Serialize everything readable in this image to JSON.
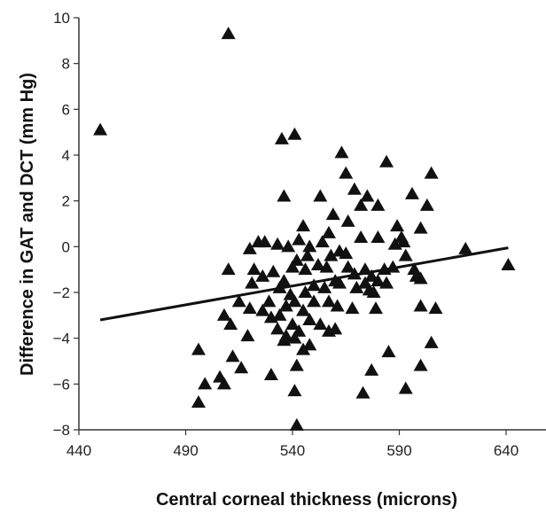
{
  "chart_data": {
    "type": "scatter",
    "title": "",
    "xlabel": "Central corneal thickness (microns)",
    "ylabel": "Difference in GAT and DCT (mm Hg)",
    "xlim": [
      440,
      640
    ],
    "ylim": [
      -8,
      10
    ],
    "x_ticks": [
      "440",
      "490",
      "540",
      "590",
      "640"
    ],
    "y_ticks": [
      "−8",
      "−6",
      "−4",
      "−2",
      "0",
      "2",
      "4",
      "6",
      "8",
      "10"
    ],
    "grid": false,
    "legend": "none",
    "marker": "triangle",
    "marker_color": "#111111",
    "points": [
      [
        450,
        5.1
      ],
      [
        510,
        9.3
      ],
      [
        535,
        4.7
      ],
      [
        541,
        4.9
      ],
      [
        536,
        2.2
      ],
      [
        563,
        4.1
      ],
      [
        565,
        3.2
      ],
      [
        584,
        3.7
      ],
      [
        569,
        2.5
      ],
      [
        575,
        2.2
      ],
      [
        553,
        2.2
      ],
      [
        596,
        2.3
      ],
      [
        605,
        3.2
      ],
      [
        603,
        1.8
      ],
      [
        580,
        1.8
      ],
      [
        572,
        1.8
      ],
      [
        566,
        1.1
      ],
      [
        559,
        1.4
      ],
      [
        557,
        0.6
      ],
      [
        545,
        0.9
      ],
      [
        589,
        0.9
      ],
      [
        591,
        0.4
      ],
      [
        588,
        0.1
      ],
      [
        600,
        0.8
      ],
      [
        593,
        -0.4
      ],
      [
        548,
        0.0
      ],
      [
        554,
        0.2
      ],
      [
        572,
        0.4
      ],
      [
        580,
        0.4
      ],
      [
        592,
        0.2
      ],
      [
        621,
        -0.1
      ],
      [
        565,
        -0.3
      ],
      [
        520,
        -0.1
      ],
      [
        524,
        0.2
      ],
      [
        527,
        0.2
      ],
      [
        533,
        0.1
      ],
      [
        538,
        0.0
      ],
      [
        543,
        0.3
      ],
      [
        547,
        -0.4
      ],
      [
        558,
        -0.4
      ],
      [
        562,
        -0.2
      ],
      [
        510,
        -1.0
      ],
      [
        522,
        -1.0
      ],
      [
        526,
        -1.3
      ],
      [
        531,
        -1.1
      ],
      [
        540,
        -0.9
      ],
      [
        542,
        -0.6
      ],
      [
        546,
        -1.0
      ],
      [
        552,
        -0.8
      ],
      [
        556,
        -0.9
      ],
      [
        560,
        -1.5
      ],
      [
        566,
        -0.9
      ],
      [
        569,
        -1.2
      ],
      [
        574,
        -1.0
      ],
      [
        577,
        -1.3
      ],
      [
        580,
        -1.5
      ],
      [
        583,
        -1.0
      ],
      [
        587,
        -0.9
      ],
      [
        597,
        -1.0
      ],
      [
        598,
        -1.3
      ],
      [
        641,
        -0.8
      ],
      [
        521,
        -1.6
      ],
      [
        534,
        -1.8
      ],
      [
        536,
        -1.5
      ],
      [
        539,
        -2.1
      ],
      [
        541,
        -2.4
      ],
      [
        546,
        -2.0
      ],
      [
        550,
        -1.7
      ],
      [
        555,
        -1.8
      ],
      [
        562,
        -1.6
      ],
      [
        570,
        -1.8
      ],
      [
        574,
        -1.6
      ],
      [
        576,
        -1.9
      ],
      [
        578,
        -2.0
      ],
      [
        584,
        -1.6
      ],
      [
        600,
        -1.4
      ],
      [
        515,
        -2.4
      ],
      [
        520,
        -2.7
      ],
      [
        526,
        -2.8
      ],
      [
        529,
        -2.4
      ],
      [
        534,
        -3.0
      ],
      [
        537,
        -2.6
      ],
      [
        545,
        -2.8
      ],
      [
        550,
        -2.4
      ],
      [
        557,
        -2.4
      ],
      [
        561,
        -2.6
      ],
      [
        568,
        -2.7
      ],
      [
        579,
        -2.7
      ],
      [
        600,
        -2.6
      ],
      [
        607,
        -2.7
      ],
      [
        508,
        -3.0
      ],
      [
        511,
        -3.4
      ],
      [
        530,
        -3.1
      ],
      [
        533,
        -3.6
      ],
      [
        537,
        -3.9
      ],
      [
        540,
        -3.4
      ],
      [
        543,
        -3.7
      ],
      [
        548,
        -3.2
      ],
      [
        553,
        -3.4
      ],
      [
        557,
        -3.7
      ],
      [
        560,
        -3.6
      ],
      [
        496,
        -4.5
      ],
      [
        512,
        -4.8
      ],
      [
        519,
        -3.9
      ],
      [
        536,
        -4.1
      ],
      [
        541,
        -4.0
      ],
      [
        545,
        -4.5
      ],
      [
        548,
        -4.3
      ],
      [
        605,
        -4.2
      ],
      [
        516,
        -5.3
      ],
      [
        530,
        -5.6
      ],
      [
        542,
        -5.2
      ],
      [
        577,
        -5.4
      ],
      [
        585,
        -4.6
      ],
      [
        600,
        -5.2
      ],
      [
        499,
        -6.0
      ],
      [
        506,
        -5.7
      ],
      [
        508,
        -6.0
      ],
      [
        541,
        -6.3
      ],
      [
        573,
        -6.4
      ],
      [
        593,
        -6.2
      ],
      [
        496,
        -6.8
      ],
      [
        542,
        -7.8
      ]
    ],
    "trendline": {
      "x": [
        450,
        641
      ],
      "y": [
        -3.2,
        -0.05
      ]
    }
  },
  "labels": {
    "xlabel": "Central corneal thickness (microns)",
    "ylabel": "Difference in GAT and DCT (mm Hg)"
  }
}
